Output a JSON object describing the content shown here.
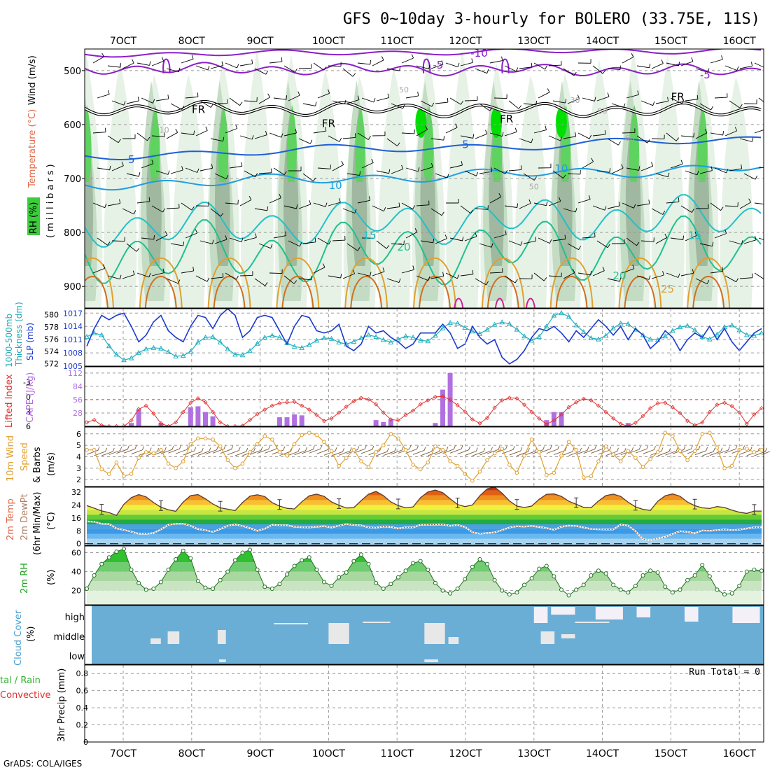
{
  "title": "GFS 0~10day 3-hourly for BOLERO (33.75E, 11S)",
  "footer": "GrADS: COLA/IGES",
  "date_labels": [
    "7OCT",
    "8OCT",
    "9OCT",
    "10OCT",
    "11OCT",
    "12OCT",
    "13OCT",
    "14OCT",
    "15OCT",
    "16OCT"
  ],
  "colors": {
    "rh_light": "#e6f2e6",
    "rh_mid": "#c4dcc4",
    "rh_dark": "#9fb89f",
    "rh_green": "#5fd35f",
    "rh_bright": "#00e000",
    "temp_purple": "#8b1fc9",
    "temp_blue": "#1f5fd6",
    "temp_lblue": "#1f9de0",
    "temp_cyan": "#22c0c8",
    "temp_teal": "#20c090",
    "temp_orange": "#e0a030",
    "temp_dorange": "#d07020",
    "temp_magenta": "#d0209a",
    "slp": "#1a3ad0",
    "thickness": "#20b0c0",
    "cape": "#b070e0",
    "li": "#e03030",
    "wind_speed": "#e0a030",
    "wind_barb": "#7a5a3a",
    "dewpt": "#b08060",
    "rh2m": "#20b020",
    "cloud": "#6aaed6",
    "cloud_clear": "#e8e8e8",
    "grid": "#9a9a9a"
  },
  "chart_data": [
    {
      "panel": "upper-air",
      "type": "heatmap",
      "xlabel": "date",
      "ylabel": "millibars",
      "y_ticks": [
        "500",
        "600",
        "700",
        "800",
        "900"
      ],
      "ylim": [
        940,
        460
      ],
      "legend": [
        "Wind (m/s)",
        "Temperature (°C)",
        "RH (%)"
      ],
      "contour_labels": [
        {
          "label": "-10",
          "x": 5.2,
          "p": 468
        },
        {
          "label": "-5",
          "x": 4.6,
          "p": 490
        },
        {
          "label": "-5",
          "x": 8.5,
          "p": 508
        },
        {
          "label": "FR",
          "x": 1.1,
          "p": 572
        },
        {
          "label": "FR",
          "x": 3.0,
          "p": 598
        },
        {
          "label": "FR",
          "x": 5.6,
          "p": 590
        },
        {
          "label": "FR",
          "x": 8.1,
          "p": 549
        },
        {
          "label": "5",
          "x": 0.12,
          "p": 665
        },
        {
          "label": "5",
          "x": 5.0,
          "p": 637
        },
        {
          "label": "10",
          "x": 3.1,
          "p": 713
        },
        {
          "label": "10",
          "x": 6.4,
          "p": 682
        },
        {
          "label": "15",
          "x": 3.6,
          "p": 806
        },
        {
          "label": "15",
          "x": 8.35,
          "p": 806
        },
        {
          "label": "20",
          "x": 4.1,
          "p": 827
        },
        {
          "label": "20",
          "x": 7.25,
          "p": 880
        },
        {
          "label": "25",
          "x": 7.95,
          "p": 905
        }
      ],
      "rh_labels": [
        {
          "label": "50",
          "x": 4.1,
          "p": 535
        },
        {
          "label": "50",
          "x": 7.0,
          "p": 575
        },
        {
          "label": "30",
          "x": 6.6,
          "p": 555
        },
        {
          "label": "10",
          "x": 0.6,
          "p": 610
        },
        {
          "label": "60",
          "x": 7.4,
          "p": 625
        },
        {
          "label": "70",
          "x": 5.3,
          "p": 688
        },
        {
          "label": "50",
          "x": 6.0,
          "p": 715
        }
      ]
    },
    {
      "panel": "slp-thickness",
      "type": "line",
      "ylabel": "SLP (mb)",
      "ylabel2": "1000-500mb Thickness (dm)",
      "y_ticks": [
        "1017",
        "1014",
        "1011",
        "1008",
        "1005"
      ],
      "y2_ticks": [
        "580",
        "578",
        "576",
        "574",
        "572"
      ],
      "series": [
        {
          "name": "SLP (mb)",
          "values": [
            1009.5,
            1013.5,
            1016.5,
            1015.5,
            1016.5,
            1017.0,
            1014.0,
            1010.5,
            1012.0,
            1015.0,
            1016.5,
            1013.0,
            1011.5,
            1010.5,
            1014.0,
            1016.5,
            1016.0,
            1013.5,
            1016.5,
            1018.0,
            1016.5,
            1011.5,
            1013.0,
            1016.0,
            1016.5,
            1016.0,
            1013.0,
            1010.0,
            1014.0,
            1016.5,
            1016.0,
            1013.0,
            1012.5,
            1013.0,
            1014.5,
            1009.5,
            1008.5,
            1010.0,
            1014.0,
            1012.5,
            1013.0,
            1011.5,
            1010.5,
            1009.0,
            1010.0,
            1012.5,
            1012.5,
            1012.5,
            1014.5,
            1012.5,
            1009.0,
            1010.0,
            1014.0,
            1011.5,
            1010.0,
            1011.0,
            1007.0,
            1005.5,
            1006.5,
            1008.5,
            1011.5,
            1013.5,
            1013.0,
            1014.0,
            1012.5,
            1010.5,
            1013.0,
            1011.5,
            1013.5,
            1015.5,
            1014.0,
            1012.0,
            1014.0,
            1011.0,
            1013.5,
            1012.0,
            1009.0,
            1010.5,
            1013.0,
            1011.5,
            1008.5,
            1011.0,
            1012.5,
            1011.5,
            1014.0,
            1011.0,
            1013.5,
            1010.5,
            1008.5,
            1010.5,
            1012.5,
            1013.5
          ]
        },
        {
          "name": "Thickness (dm)",
          "values": [
            576.4,
            577.0,
            576.7,
            574.9,
            573.5,
            572.6,
            572.9,
            573.8,
            574.4,
            574.6,
            574.5,
            573.9,
            573.2,
            573.3,
            574.0,
            575.5,
            576.3,
            576.4,
            575.5,
            574.4,
            573.5,
            573.4,
            574.1,
            575.3,
            576.3,
            576.6,
            576.3,
            575.4,
            574.8,
            574.6,
            575.1,
            575.8,
            576.2,
            576.1,
            575.5,
            575.2,
            575.6,
            576.2,
            576.7,
            576.4,
            575.9,
            575.5,
            576.0,
            576.5,
            576.3,
            575.8,
            575.7,
            576.6,
            577.8,
            578.7,
            578.6,
            577.9,
            577.3,
            576.9,
            577.6,
            578.4,
            578.8,
            578.5,
            577.6,
            576.5,
            575.8,
            576.4,
            578.1,
            579.9,
            580.3,
            579.7,
            578.3,
            577.2,
            576.2,
            576.0,
            576.6,
            577.8,
            578.6,
            578.5,
            577.6,
            576.7,
            576.0,
            575.9,
            576.5,
            577.4,
            578.0,
            578.2,
            577.5,
            576.4,
            576.0,
            576.8,
            578.0,
            578.3,
            577.5,
            576.7,
            576.6,
            577.0
          ]
        }
      ]
    },
    {
      "panel": "cape-lifted-index",
      "type": "bar",
      "ylabel": "CAPE (J/kg)",
      "ylabel2": "Lifted Index",
      "y_ticks": [
        "112",
        "84",
        "56",
        "28"
      ],
      "y2_ticks": [
        "-3",
        "0",
        "3",
        "6"
      ],
      "series": [
        {
          "name": "CAPE (J/kg)",
          "values": [
            0,
            0,
            0,
            0,
            0,
            0,
            7,
            35,
            0,
            0,
            7,
            0,
            0,
            0,
            40,
            42,
            30,
            21,
            0,
            0,
            0,
            0,
            0,
            0,
            0,
            0,
            19,
            19,
            25,
            23,
            0,
            0,
            0,
            0,
            0,
            0,
            0,
            0,
            0,
            13,
            9,
            14,
            0,
            0,
            0,
            0,
            0,
            7,
            77,
            112,
            0,
            0,
            0,
            0,
            0,
            0,
            0,
            0,
            0,
            0,
            0,
            0,
            13,
            30,
            30,
            0,
            0,
            0,
            0,
            0,
            0,
            0,
            0,
            7,
            0,
            0,
            0,
            0,
            0,
            0,
            0,
            0,
            0,
            0,
            0,
            0,
            0,
            0,
            0,
            0,
            0,
            0
          ]
        },
        {
          "name": "Lifted Index",
          "values": [
            5.2,
            4.7,
            5.8,
            6.0,
            6.0,
            6.0,
            4.8,
            2.5,
            1.8,
            3.4,
            5.4,
            6.0,
            5.2,
            3.1,
            1.2,
            0.3,
            1.1,
            3.1,
            5.2,
            6.0,
            6.0,
            5.9,
            4.7,
            3.5,
            2.6,
            1.8,
            1.3,
            1.1,
            1.0,
            1.8,
            2.6,
            3.7,
            4.9,
            4.4,
            3.2,
            2.0,
            0.9,
            0.2,
            0.5,
            1.5,
            3.2,
            4.6,
            4.8,
            3.7,
            2.8,
            1.5,
            0.7,
            0.0,
            -0.1,
            0.6,
            1.7,
            3.0,
            4.6,
            5.4,
            4.3,
            2.2,
            0.7,
            0.2,
            0.3,
            1.6,
            3.1,
            4.4,
            5.6,
            4.8,
            3.6,
            2.1,
            1.1,
            0.4,
            0.7,
            1.8,
            3.1,
            4.4,
            5.5,
            6.0,
            5.3,
            3.9,
            2.3,
            1.3,
            1.2,
            2.1,
            3.3,
            4.9,
            5.8,
            5.2,
            3.1,
            1.6,
            1.2,
            1.9,
            3.2,
            5.5,
            3.6,
            2.3
          ]
        }
      ]
    },
    {
      "panel": "wind-10m",
      "type": "line",
      "ylabel": "10m Wind Speed & Barbs (m/s)",
      "y_ticks": [
        "6",
        "5",
        "4",
        "3",
        "2"
      ],
      "series": [
        {
          "name": "Speed (m/s)",
          "values": [
            4.6,
            4.6,
            2.9,
            2.5,
            3.5,
            2.3,
            2.5,
            3.9,
            4.4,
            4.3,
            4.6,
            3.4,
            3.0,
            3.6,
            5.1,
            5.6,
            5.6,
            5.5,
            4.9,
            3.7,
            3.0,
            3.4,
            4.4,
            5.1,
            5.8,
            5.5,
            4.4,
            4.1,
            5.1,
            5.9,
            6.1,
            5.9,
            5.3,
            4.5,
            3.2,
            3.9,
            4.6,
            3.6,
            3.1,
            4.4,
            5.0,
            6.0,
            5.6,
            4.6,
            3.3,
            2.9,
            3.5,
            4.9,
            4.6,
            3.6,
            3.2,
            2.5,
            1.9,
            2.7,
            3.7,
            4.3,
            4.7,
            3.3,
            2.6,
            4.1,
            5.5,
            4.4,
            2.4,
            2.6,
            4.1,
            5.3,
            4.6,
            2.2,
            2.3,
            3.6,
            4.9,
            4.2,
            3.6,
            4.5,
            3.9,
            3.1,
            3.8,
            4.4,
            6.1,
            5.8,
            4.5,
            3.7,
            4.5,
            6.0,
            6.1,
            4.8,
            3.0,
            3.2,
            4.6,
            4.7,
            4.4,
            4.6
          ]
        }
      ]
    },
    {
      "panel": "temp-2m",
      "type": "area",
      "ylabel": "2m Temp 2m DewPt (6hr Min/Max) (°C)",
      "y_ticks": [
        "32",
        "24",
        "16",
        "8",
        "0"
      ],
      "series": [
        {
          "name": "2m Temp (°C)",
          "values": [
            23.6,
            22.0,
            20.3,
            19.3,
            17.5,
            24.4,
            28.6,
            30.4,
            29.0,
            25.5,
            22.6,
            21.0,
            20.1,
            25.8,
            29.8,
            30.4,
            27.8,
            24.6,
            22.2,
            21.4,
            20.5,
            25.5,
            29.5,
            30.3,
            29.2,
            25.4,
            23.3,
            21.9,
            21.5,
            26.0,
            29.7,
            30.7,
            29.3,
            25.9,
            23.8,
            22.1,
            22.3,
            26.7,
            30.7,
            32.4,
            29.8,
            25.9,
            23.6,
            22.2,
            22.8,
            28.5,
            32.0,
            33.2,
            31.6,
            27.8,
            24.3,
            23.0,
            24.0,
            29.7,
            34.0,
            35.1,
            31.3,
            26.5,
            23.3,
            22.4,
            23.3,
            27.5,
            30.6,
            30.9,
            29.3,
            26.3,
            24.4,
            22.5,
            22.3,
            26.4,
            29.8,
            30.7,
            29.3,
            25.7,
            22.8,
            21.3,
            20.6,
            26.3,
            29.7,
            30.9,
            29.4,
            25.8,
            23.5,
            22.2,
            21.8,
            23.0,
            22.4,
            20.8,
            19.5,
            18.8,
            20.2,
            20.2
          ]
        },
        {
          "name": "2m DewPt (°C)",
          "values": [
            13.8,
            13.6,
            12.3,
            12.2,
            9.4,
            8.5,
            7.4,
            6.2,
            6.1,
            6.6,
            8.8,
            11.7,
            12.3,
            12.4,
            11.1,
            9.0,
            8.4,
            7.3,
            9.1,
            11.1,
            11.9,
            11.0,
            9.6,
            8.0,
            9.2,
            11.7,
            11.4,
            11.4,
            10.5,
            10.2,
            10.1,
            10.5,
            10.9,
            10.0,
            11.2,
            12.2,
            11.6,
            11.3,
            10.1,
            9.9,
            10.6,
            10.3,
            9.4,
            10.1,
            10.1,
            11.7,
            11.7,
            11.8,
            11.9,
            11.1,
            11.6,
            10.3,
            7.1,
            6.2,
            6.6,
            7.0,
            8.4,
            10.0,
            10.8,
            10.6,
            11.0,
            10.3,
            9.7,
            8.6,
            10.5,
            11.2,
            11.0,
            10.0,
            9.1,
            8.9,
            8.8,
            8.8,
            11.9,
            11.2,
            7.7,
            2.8,
            2.1,
            3.3,
            4.2,
            6.1,
            7.7,
            7.3,
            6.5,
            8.2,
            8.0,
            8.4,
            8.8,
            8.4,
            8.7,
            9.4,
            10.1,
            10.2
          ]
        }
      ]
    },
    {
      "panel": "rh-2m",
      "type": "area",
      "ylabel": "2m RH (%)",
      "y_ticks": [
        "60",
        "40",
        "20"
      ],
      "series": [
        {
          "name": "2m RH (%)",
          "values": [
            22,
            36,
            48,
            55,
            61,
            64,
            42,
            28,
            21,
            22,
            29,
            42,
            53,
            62,
            54,
            30,
            23,
            22,
            31,
            40,
            52,
            60,
            63,
            42,
            24,
            22,
            27,
            37,
            46,
            52,
            55,
            42,
            29,
            25,
            34,
            39,
            51,
            58,
            48,
            28,
            22,
            27,
            34,
            41,
            49,
            51,
            42,
            28,
            20,
            17,
            22,
            32,
            45,
            53,
            48,
            31,
            20,
            16,
            18,
            26,
            33,
            43,
            46,
            35,
            21,
            15,
            21,
            26,
            36,
            41,
            38,
            26,
            21,
            18,
            25,
            36,
            41,
            39,
            24,
            18,
            21,
            31,
            36,
            47,
            35,
            21,
            16,
            17,
            25,
            40,
            42,
            41
          ]
        }
      ]
    },
    {
      "panel": "cloud-cover",
      "type": "bar",
      "ylabel": "Cloud Cover (%)",
      "y_ticks": [
        "high",
        "middle",
        "low"
      ]
    },
    {
      "panel": "precip-3hr",
      "type": "bar",
      "ylabel": "3hr Precip (mm)",
      "legend": [
        "Total / Rain",
        "Convective"
      ],
      "annotation": "Run Total = 0",
      "y_ticks": [
        "0.8",
        "0.6",
        "0.4",
        "0.2",
        "0"
      ],
      "ylim": [
        0,
        0.9
      ]
    }
  ],
  "panel_labels": {
    "upper_wind": "Wind (m/s)",
    "upper_temp": "Temperature (°C)",
    "upper_rh": "RH (%)",
    "upper_mb": "(millibars)",
    "thick1": "1000-500mb",
    "thick2": "Thickness (dm)",
    "slp": "SLP (mb)",
    "li": "Lifted Index",
    "cape": "CAPE (J/kg)",
    "wind1": "10m Wind",
    "wind2": "Speed",
    "wind3": "& Barbs",
    "wind4": "(m/s)",
    "t1": "2m Temp",
    "t2": "2m DewPt",
    "t3": "(6hr Min/Max)",
    "t4": "(°C)",
    "rh1": "2m RH",
    "rh2": "(%)",
    "cc1": "Cloud Cover",
    "cc2": "(%)",
    "pr1": "tal / Rain",
    "pr2": "Convective",
    "pr3": "3hr Precip (mm)"
  }
}
